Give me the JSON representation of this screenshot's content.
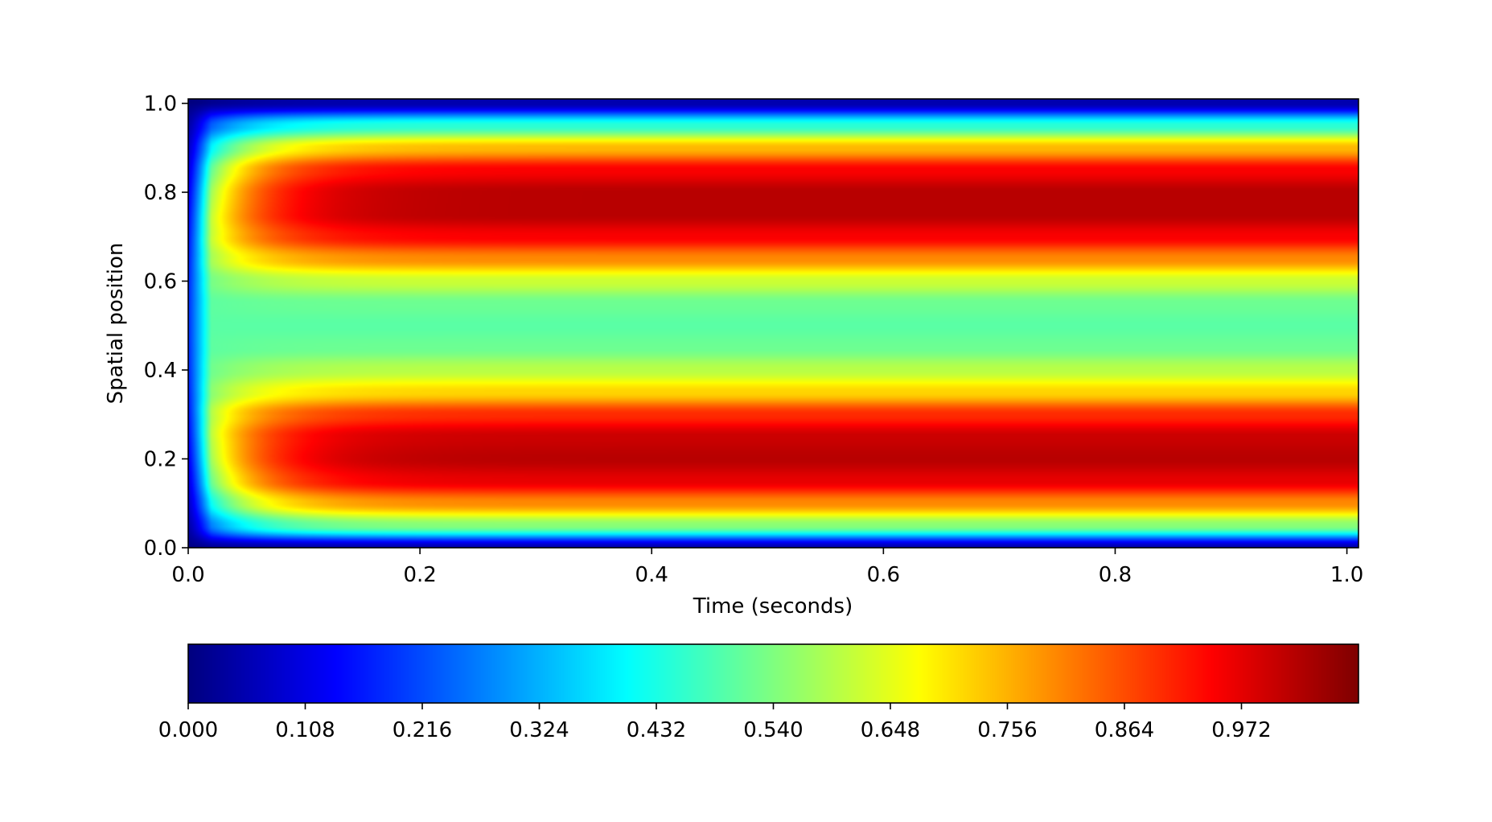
{
  "chart_data": {
    "type": "heatmap",
    "title": "",
    "xlabel": "Time (seconds)",
    "ylabel": "Spatial position",
    "xlim": [
      0.0,
      1.01
    ],
    "ylim": [
      0.0,
      1.01
    ],
    "x_ticks": [
      "0.0",
      "0.2",
      "0.4",
      "0.6",
      "0.8",
      "1.0"
    ],
    "y_ticks": [
      "0.0",
      "0.2",
      "0.4",
      "0.6",
      "0.8",
      "1.0"
    ],
    "x_tick_values": [
      0.0,
      0.2,
      0.4,
      0.6,
      0.8,
      1.0
    ],
    "y_tick_values": [
      0.0,
      0.2,
      0.4,
      0.6,
      0.8,
      1.0
    ],
    "colormap": "jet",
    "value_range": [
      0.0,
      1.08
    ],
    "field_description_points": {
      "steady_profile_y": [
        0.0,
        0.05,
        0.1,
        0.15,
        0.2,
        0.25,
        0.3,
        0.35,
        0.4,
        0.45,
        0.5,
        0.55,
        0.6,
        0.65,
        0.7,
        0.75,
        0.8,
        0.85,
        0.9,
        0.95,
        1.0
      ],
      "steady_profile_value": [
        0.05,
        0.55,
        0.8,
        0.97,
        1.02,
        1.0,
        0.9,
        0.72,
        0.6,
        0.52,
        0.5,
        0.52,
        0.62,
        0.8,
        0.95,
        1.02,
        1.02,
        0.95,
        0.75,
        0.45,
        0.05
      ],
      "onset_time": 0.1
    },
    "colorbar": {
      "orientation": "horizontal",
      "ticks": [
        "0.000",
        "0.108",
        "0.216",
        "0.324",
        "0.432",
        "0.540",
        "0.648",
        "0.756",
        "0.864",
        "0.972"
      ],
      "tick_values": [
        0.0,
        0.108,
        0.216,
        0.324,
        0.432,
        0.54,
        0.648,
        0.756,
        0.864,
        0.972
      ]
    }
  }
}
